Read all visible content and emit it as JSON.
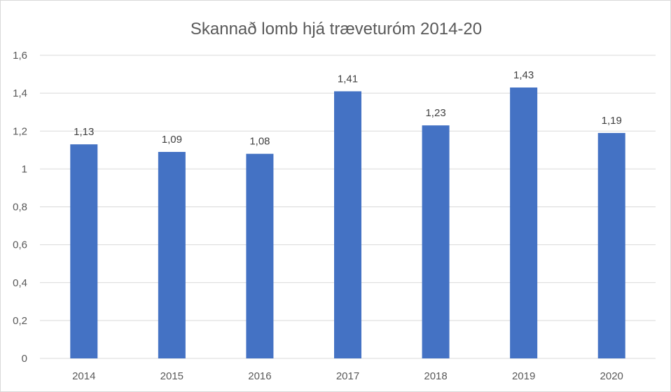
{
  "chart_data": {
    "type": "bar",
    "title": "Skannað lomb hjá træveturóm 2014-20",
    "xlabel": "",
    "ylabel": "",
    "categories": [
      "2014",
      "2015",
      "2016",
      "2017",
      "2018",
      "2019",
      "2020"
    ],
    "series": [
      {
        "values": [
          1.13,
          1.09,
          1.08,
          1.41,
          1.23,
          1.43,
          1.19
        ],
        "data_labels": [
          "1,13",
          "1,09",
          "1,08",
          "1,41",
          "1,23",
          "1,43",
          "1,19"
        ],
        "color": "#4472c4"
      }
    ],
    "ylim": [
      0,
      1.6
    ],
    "yticks": [
      0,
      0.2,
      0.4,
      0.6,
      0.8,
      1,
      1.2,
      1.4,
      1.6
    ],
    "ytick_labels": [
      "0",
      "0,2",
      "0,4",
      "0,6",
      "0,8",
      "1",
      "1,2",
      "1,4",
      "1,6"
    ],
    "grid": true,
    "legend": "none",
    "colors": {
      "bar": "#4472c4",
      "gridline": "#d9d9d9",
      "text": "#595959"
    }
  }
}
